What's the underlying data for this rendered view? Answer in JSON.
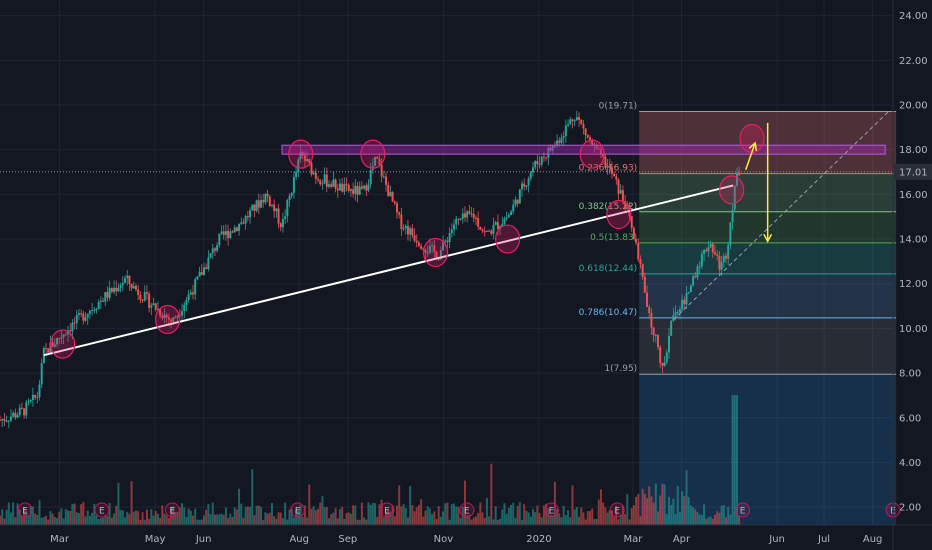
{
  "chart_data": {
    "type": "candlestick",
    "y_axis": {
      "ticks": [
        "24.00",
        "22.00",
        "20.00",
        "18.00",
        "16.00",
        "14.00",
        "12.00",
        "10.00",
        "8.00",
        "6.00",
        "4.00",
        "2.00"
      ],
      "tick_values": [
        24,
        22,
        20,
        18,
        16,
        14,
        12,
        10,
        8,
        6,
        4,
        2
      ],
      "range": [
        1.2,
        24.7
      ],
      "last_price_label": "17.01",
      "last_price": 17.01
    },
    "x_axis": {
      "labels": [
        "Mar",
        "May",
        "Jun",
        "Aug",
        "Sep",
        "Nov",
        "2020",
        "Mar",
        "Apr",
        "Jun",
        "Jul",
        "Aug"
      ],
      "label_positions_days": [
        28,
        89,
        120,
        181,
        212,
        273,
        334,
        394,
        425,
        486,
        516,
        547
      ],
      "range_days": [
        -10,
        560
      ]
    },
    "price_anchors": [
      {
        "day": -10,
        "price": 5.9
      },
      {
        "day": 5,
        "price": 6.3
      },
      {
        "day": 14,
        "price": 7.0
      },
      {
        "day": 18,
        "price": 8.9
      },
      {
        "day": 32,
        "price": 9.9
      },
      {
        "day": 45,
        "price": 10.7
      },
      {
        "day": 70,
        "price": 12.2
      },
      {
        "day": 85,
        "price": 11.2
      },
      {
        "day": 100,
        "price": 10.3
      },
      {
        "day": 115,
        "price": 12.0
      },
      {
        "day": 130,
        "price": 14.0
      },
      {
        "day": 145,
        "price": 14.8
      },
      {
        "day": 160,
        "price": 16.0
      },
      {
        "day": 170,
        "price": 14.6
      },
      {
        "day": 182,
        "price": 17.8
      },
      {
        "day": 192,
        "price": 16.8
      },
      {
        "day": 210,
        "price": 16.2
      },
      {
        "day": 222,
        "price": 16.1
      },
      {
        "day": 230,
        "price": 17.6
      },
      {
        "day": 245,
        "price": 14.8
      },
      {
        "day": 262,
        "price": 13.6
      },
      {
        "day": 270,
        "price": 13.3
      },
      {
        "day": 280,
        "price": 14.7
      },
      {
        "day": 292,
        "price": 15.1
      },
      {
        "day": 300,
        "price": 14.2
      },
      {
        "day": 315,
        "price": 15.1
      },
      {
        "day": 330,
        "price": 17.2
      },
      {
        "day": 345,
        "price": 18.3
      },
      {
        "day": 357,
        "price": 19.6
      },
      {
        "day": 367,
        "price": 18.3
      },
      {
        "day": 380,
        "price": 17.0
      },
      {
        "day": 390,
        "price": 15.4
      },
      {
        "day": 398,
        "price": 13.0
      },
      {
        "day": 405,
        "price": 10.2
      },
      {
        "day": 410,
        "price": 9.3
      },
      {
        "day": 413,
        "price": 8.0
      },
      {
        "day": 420,
        "price": 10.8
      },
      {
        "day": 428,
        "price": 11.3
      },
      {
        "day": 435,
        "price": 12.8
      },
      {
        "day": 443,
        "price": 13.9
      },
      {
        "day": 450,
        "price": 12.7
      },
      {
        "day": 454,
        "price": 13.5
      },
      {
        "day": 459,
        "price": 16.4
      },
      {
        "day": 462,
        "price": 17.1
      }
    ],
    "fib_levels": [
      {
        "label": "0(19.71)",
        "ratio": "0",
        "price": 19.71,
        "color": "#9e9e9e"
      },
      {
        "label": "0.236(16.93)",
        "ratio": "0.236",
        "price": 16.93,
        "color": "#e57373"
      },
      {
        "label": "0.382(15.22)",
        "ratio": "0.382",
        "price": 15.22,
        "color": "#81c784"
      },
      {
        "label": "0.5(13.83)",
        "ratio": "0.5",
        "price": 13.83,
        "color": "#4caf50"
      },
      {
        "label": "0.618(12.44)",
        "ratio": "0.618",
        "price": 12.44,
        "color": "#26a69a"
      },
      {
        "label": "0.786(10.47)",
        "ratio": "0.786",
        "price": 10.47,
        "color": "#64b5f6"
      },
      {
        "label": "1(7.95)",
        "ratio": "1",
        "price": 7.95,
        "color": "#9e9e9e"
      }
    ],
    "fib_range_days": [
      398,
      562
    ],
    "trendline": {
      "start": {
        "day": 18,
        "price": 8.8
      },
      "end": {
        "day": 458,
        "price": 16.4
      }
    },
    "resistance_zone": {
      "start_day": 170,
      "end_day": 555,
      "price_low": 17.8,
      "price_high": 18.2
    },
    "circled_points": [
      {
        "day": 30,
        "price": 9.3
      },
      {
        "day": 97,
        "price": 10.4
      },
      {
        "day": 182,
        "price": 17.8
      },
      {
        "day": 228,
        "price": 17.8
      },
      {
        "day": 268,
        "price": 13.4
      },
      {
        "day": 314,
        "price": 14.0
      },
      {
        "day": 368,
        "price": 17.8
      },
      {
        "day": 385,
        "price": 15.1
      },
      {
        "day": 457,
        "price": 16.2
      },
      {
        "day": 470,
        "price": 18.5
      }
    ],
    "arrows": [
      {
        "color": "#ffeb3b",
        "from": {
          "day": 466,
          "price": 17.1
        },
        "to": {
          "day": 472,
          "price": 18.3
        }
      },
      {
        "color": "#ffeb3b",
        "from": {
          "day": 480,
          "price": 19.2
        },
        "to": {
          "day": 480,
          "price": 13.9
        }
      }
    ],
    "annotation_dashed_line": {
      "from": {
        "day": 420,
        "price": 10.4
      },
      "to": {
        "day": 557,
        "price": 19.7
      }
    },
    "event_marker_days": [
      6,
      55,
      100,
      180,
      237,
      288,
      342,
      384,
      464,
      560
    ],
    "event_marker_label": "E",
    "colors": {
      "background": "#131722",
      "grid": "#1f2433",
      "up": "#26a69a",
      "down": "#ef5350",
      "trendline": "#ffffff",
      "resistance": "#9c27b0",
      "circle": "#e91e63",
      "arrow": "#ffeb3b"
    }
  }
}
